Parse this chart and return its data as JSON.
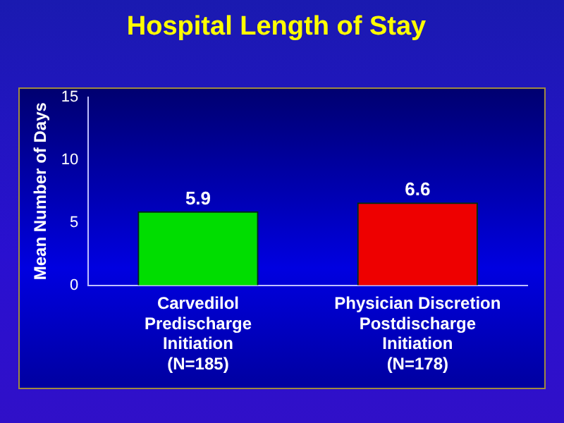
{
  "chart_data": {
    "type": "bar",
    "title": "Hospital Length of Stay",
    "ylabel": "Mean Number of Days",
    "categories": [
      "Carvedilol\nPredischarge\nInitiation\n(N=185)",
      "Physician Discretion\nPostdischarge\nInitiation\n(N=178)"
    ],
    "values": [
      5.9,
      6.6
    ],
    "colors": [
      "#00dd00",
      "#ee0000"
    ],
    "ylim": [
      0,
      15
    ],
    "yticks": [
      0,
      5,
      10,
      15
    ],
    "grid": false,
    "legend": false,
    "data_labels": true
  }
}
